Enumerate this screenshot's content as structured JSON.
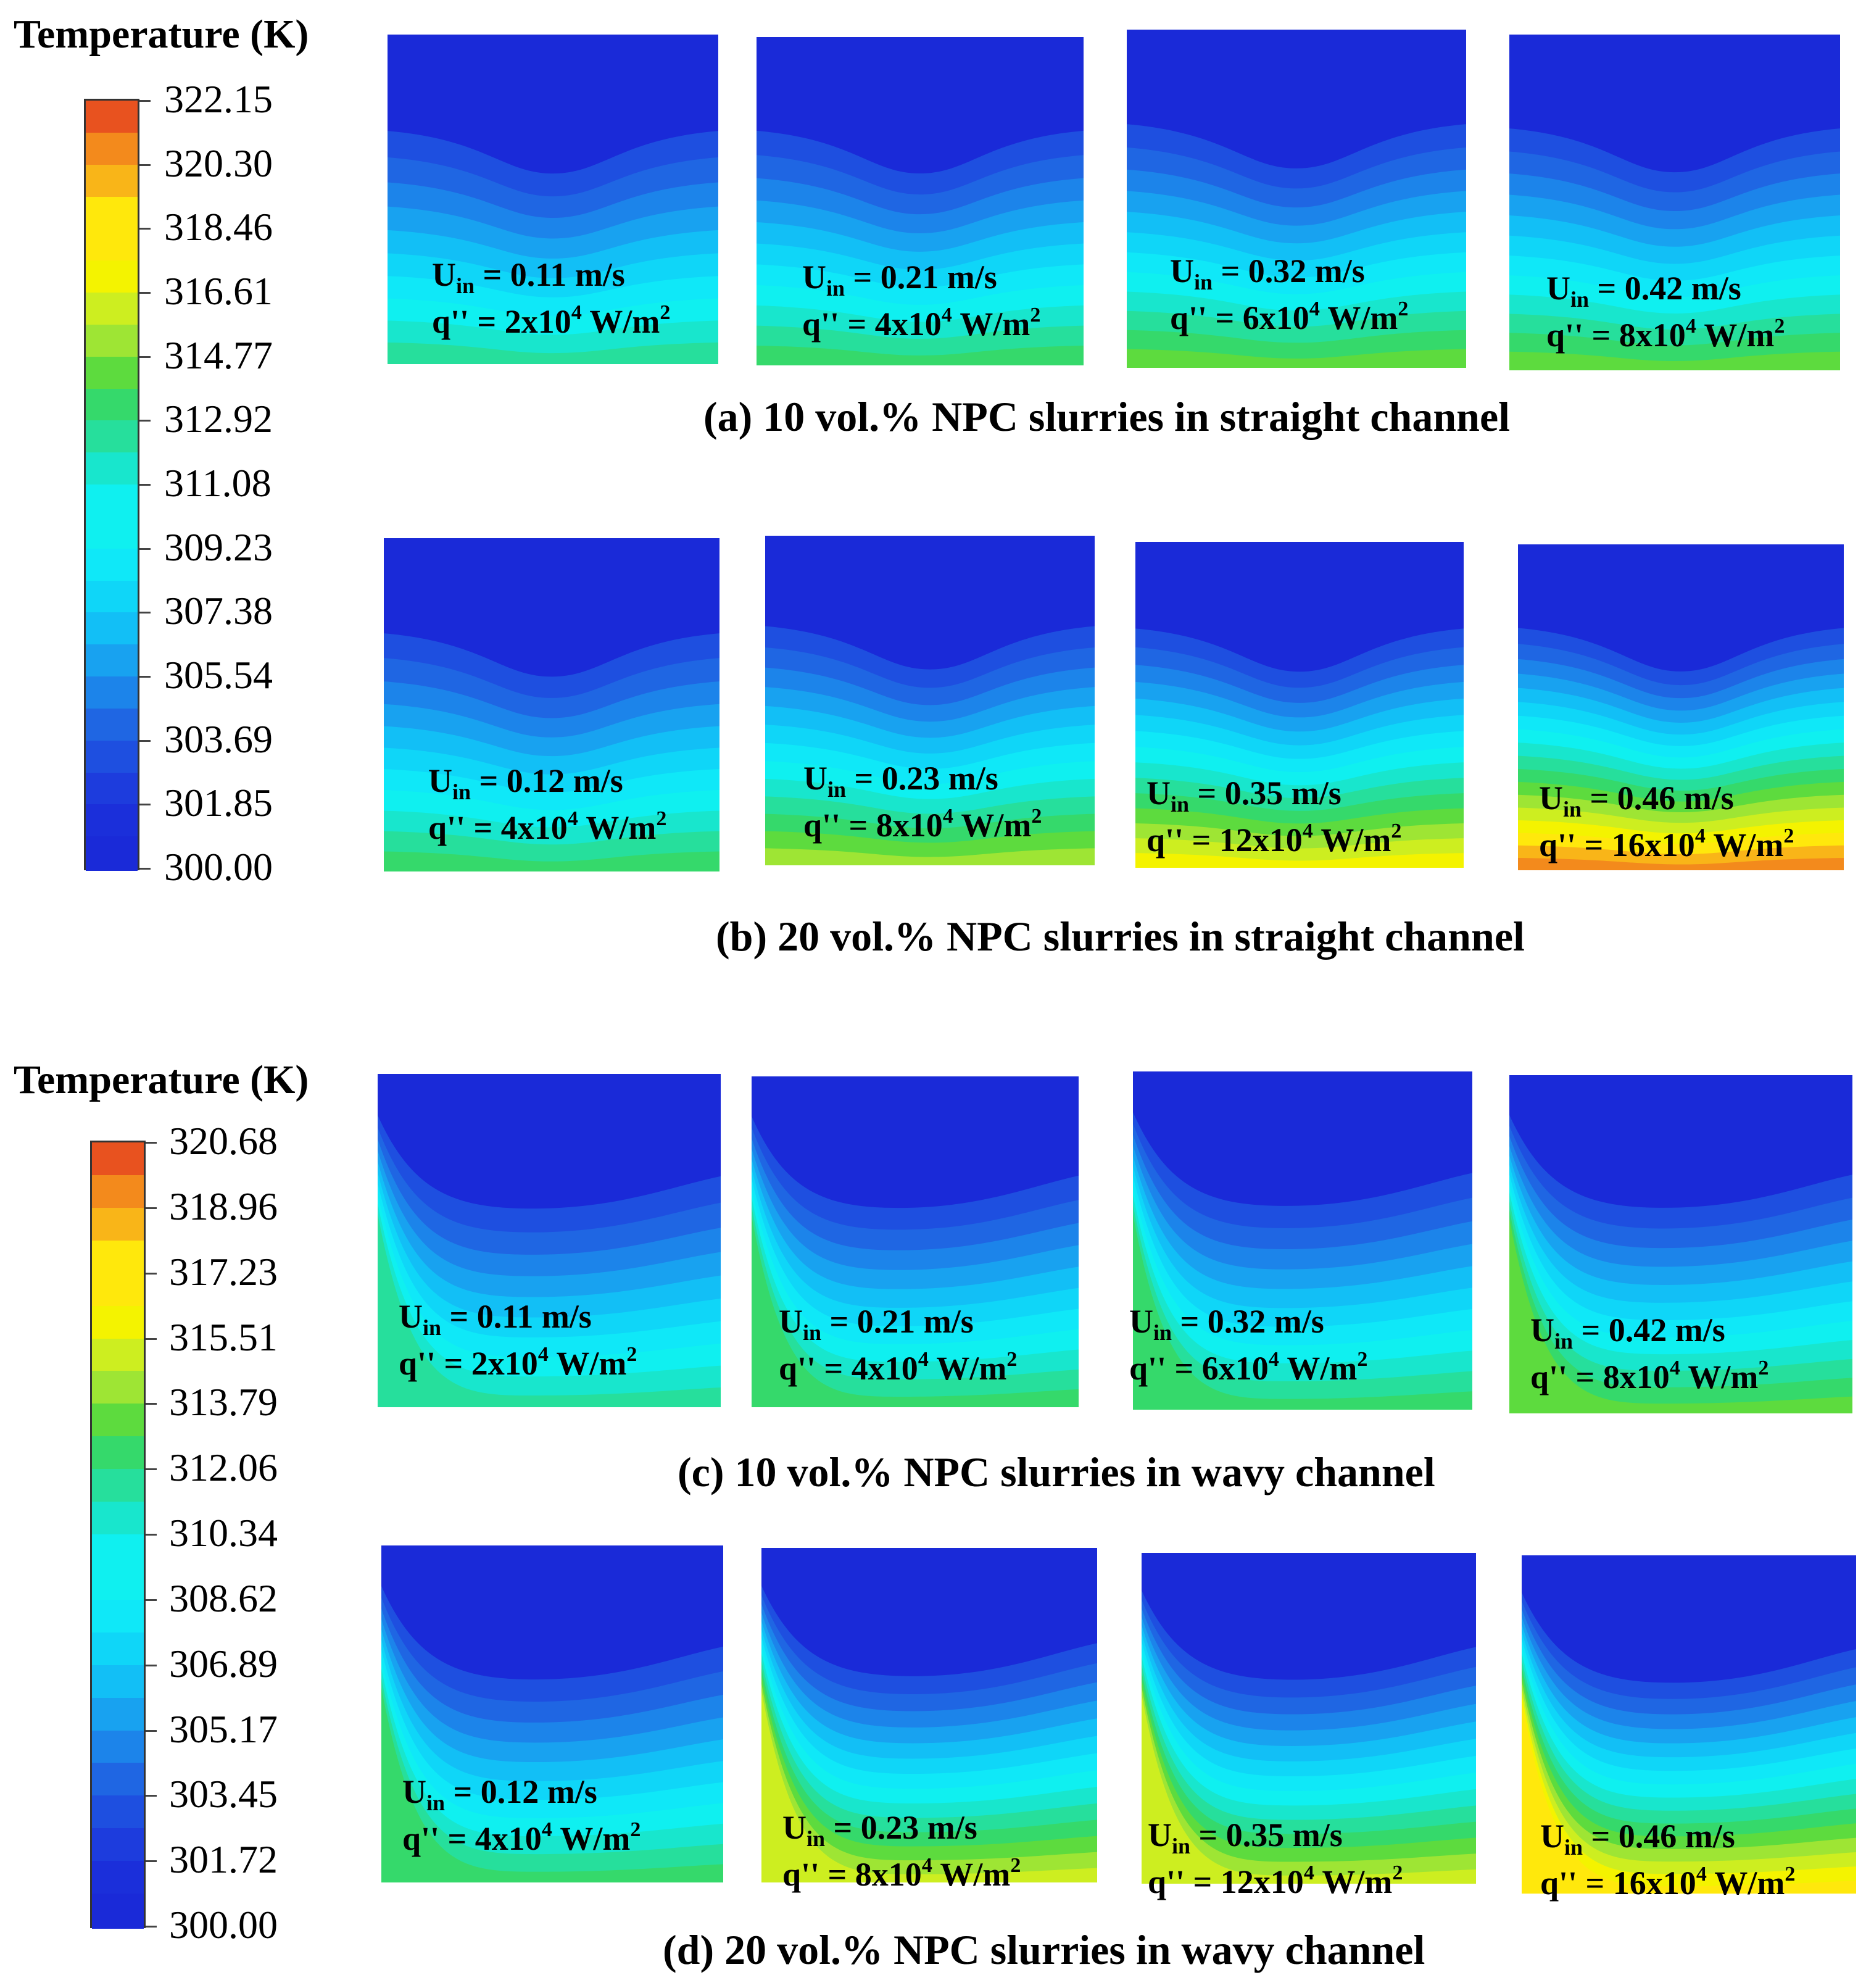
{
  "legends": [
    {
      "title": "Temperature (K)",
      "ticks": [
        "322.15",
        "320.30",
        "318.46",
        "316.61",
        "314.77",
        "312.92",
        "311.08",
        "309.23",
        "307.38",
        "305.54",
        "303.69",
        "301.85",
        "300.00"
      ],
      "colors": [
        "#e8521f",
        "#f38a1c",
        "#f9b518",
        "#ffe80c",
        "#ffe80c",
        "#f4f300",
        "#cdee20",
        "#9ee534",
        "#5ddb3e",
        "#35d96b",
        "#26df9c",
        "#18e6cd",
        "#0ff0f0",
        "#0ff0f0",
        "#0fe8f8",
        "#0fd6f8",
        "#12bff6",
        "#18a2f0",
        "#1c84ea",
        "#1f66e3",
        "#1e4fe0",
        "#1d3cdd",
        "#1b2fda",
        "#1a2ad8"
      ]
    },
    {
      "title": "Temperature (K)",
      "ticks": [
        "320.68",
        "318.96",
        "317.23",
        "315.51",
        "313.79",
        "312.06",
        "310.34",
        "308.62",
        "306.89",
        "305.17",
        "303.45",
        "301.72",
        "300.00"
      ],
      "colors": [
        "#e8521f",
        "#f38a1c",
        "#f9b518",
        "#ffe80c",
        "#ffe80c",
        "#f4f300",
        "#cdee20",
        "#9ee534",
        "#5ddb3e",
        "#35d96b",
        "#26df9c",
        "#18e6cd",
        "#0ff0f0",
        "#0ff0f0",
        "#0fe8f8",
        "#0fd6f8",
        "#12bff6",
        "#18a2f0",
        "#1c84ea",
        "#1f66e3",
        "#1e4fe0",
        "#1d3cdd",
        "#1b2fda",
        "#1a2ad8"
      ]
    }
  ],
  "groups": [
    {
      "caption": "(a) 10 vol.% NPC slurries in straight channel",
      "shape": "straight",
      "panels": [
        {
          "u_prefix": "U",
          "u_sub": "in",
          "u_value": " = 0.11 m/s",
          "q_prefix": "q'' =  2x10",
          "q_exp": "4",
          "q_unit": " W/m",
          "q_unit_exp": "2",
          "heat_level": 0.12
        },
        {
          "u_prefix": "U",
          "u_sub": "in",
          "u_value": " = 0.21 m/s",
          "q_prefix": "q'' =  4x10",
          "q_exp": "4",
          "q_unit": " W/m",
          "q_unit_exp": "2",
          "heat_level": 0.18
        },
        {
          "u_prefix": "U",
          "u_sub": "in",
          "u_value": " = 0.32 m/s",
          "q_prefix": "q'' =  6x10",
          "q_exp": "4",
          "q_unit": " W/m",
          "q_unit_exp": "2",
          "heat_level": 0.25
        },
        {
          "u_prefix": "U",
          "u_sub": "in",
          "u_value": " = 0.42 m/s",
          "q_prefix": "q'' =  8x10",
          "q_exp": "4",
          "q_unit": " W/m",
          "q_unit_exp": "2",
          "heat_level": 0.33
        }
      ]
    },
    {
      "caption": "(b) 20 vol.% NPC slurries in straight channel",
      "shape": "straight",
      "panels": [
        {
          "u_prefix": "U",
          "u_sub": "in",
          "u_value": " = 0.12 m/s",
          "q_prefix": "q'' =  4x10",
          "q_exp": "4",
          "q_unit": " W/m",
          "q_unit_exp": "2",
          "heat_level": 0.22
        },
        {
          "u_prefix": "U",
          "u_sub": "in",
          "u_value": " = 0.23 m/s",
          "q_prefix": "q'' =  8x10",
          "q_exp": "4",
          "q_unit": " W/m",
          "q_unit_exp": "2",
          "heat_level": 0.42
        },
        {
          "u_prefix": "U",
          "u_sub": "in",
          "u_value": " = 0.35 m/s",
          "q_prefix": "q'' =  12x10",
          "q_exp": "4",
          "q_unit": " W/m",
          "q_unit_exp": "2",
          "heat_level": 0.62
        },
        {
          "u_prefix": "U",
          "u_sub": "in",
          "u_value": " = 0.46 m/s",
          "q_prefix": "q'' =  16x10",
          "q_exp": "4",
          "q_unit": " W/m",
          "q_unit_exp": "2",
          "heat_level": 0.85
        }
      ]
    },
    {
      "caption": "(c) 10 vol.% NPC slurries in wavy channel",
      "shape": "wavy",
      "panels": [
        {
          "u_prefix": "U",
          "u_sub": "in",
          "u_value": " = 0.11 m/s",
          "q_prefix": "q'' =  2x10",
          "q_exp": "4",
          "q_unit": " W/m",
          "q_unit_exp": "2",
          "heat_level": 0.12
        },
        {
          "u_prefix": "U",
          "u_sub": "in",
          "u_value": " = 0.21 m/s",
          "q_prefix": "q'' =  4x10",
          "q_exp": "4",
          "q_unit": " W/m",
          "q_unit_exp": "2",
          "heat_level": 0.16
        },
        {
          "u_prefix": "U",
          "u_sub": "in",
          "u_value": " = 0.32 m/s",
          "q_prefix": "q'' =  6x10",
          "q_exp": "4",
          "q_unit": " W/m",
          "q_unit_exp": "2",
          "heat_level": 0.2
        },
        {
          "u_prefix": "U",
          "u_sub": "in",
          "u_value": " = 0.42 m/s",
          "q_prefix": "q'' =  8x10",
          "q_exp": "4",
          "q_unit": " W/m",
          "q_unit_exp": "2",
          "heat_level": 0.26
        }
      ]
    },
    {
      "caption": "(d) 20 vol.% NPC slurries in wavy channel",
      "shape": "wavy",
      "panels": [
        {
          "u_prefix": "U",
          "u_sub": "in",
          "u_value": " = 0.12 m/s",
          "q_prefix": "q'' =  4x10",
          "q_exp": "4",
          "q_unit": " W/m",
          "q_unit_exp": "2",
          "heat_level": 0.2
        },
        {
          "u_prefix": "U",
          "u_sub": "in",
          "u_value": " = 0.23 m/s",
          "q_prefix": "q'' =  8x10",
          "q_exp": "4",
          "q_unit": " W/m",
          "q_unit_exp": "2",
          "heat_level": 0.45
        },
        {
          "u_prefix": "U",
          "u_sub": "in",
          "u_value": " = 0.35 m/s",
          "q_prefix": "q'' =  12x10",
          "q_exp": "4",
          "q_unit": " W/m",
          "q_unit_exp": "2",
          "heat_level": 0.5
        },
        {
          "u_prefix": "U",
          "u_sub": "in",
          "u_value": " = 0.46 m/s",
          "q_prefix": "q'' =  16x10",
          "q_exp": "4",
          "q_unit": " W/m",
          "q_unit_exp": "2",
          "heat_level": 0.72
        }
      ]
    }
  ]
}
